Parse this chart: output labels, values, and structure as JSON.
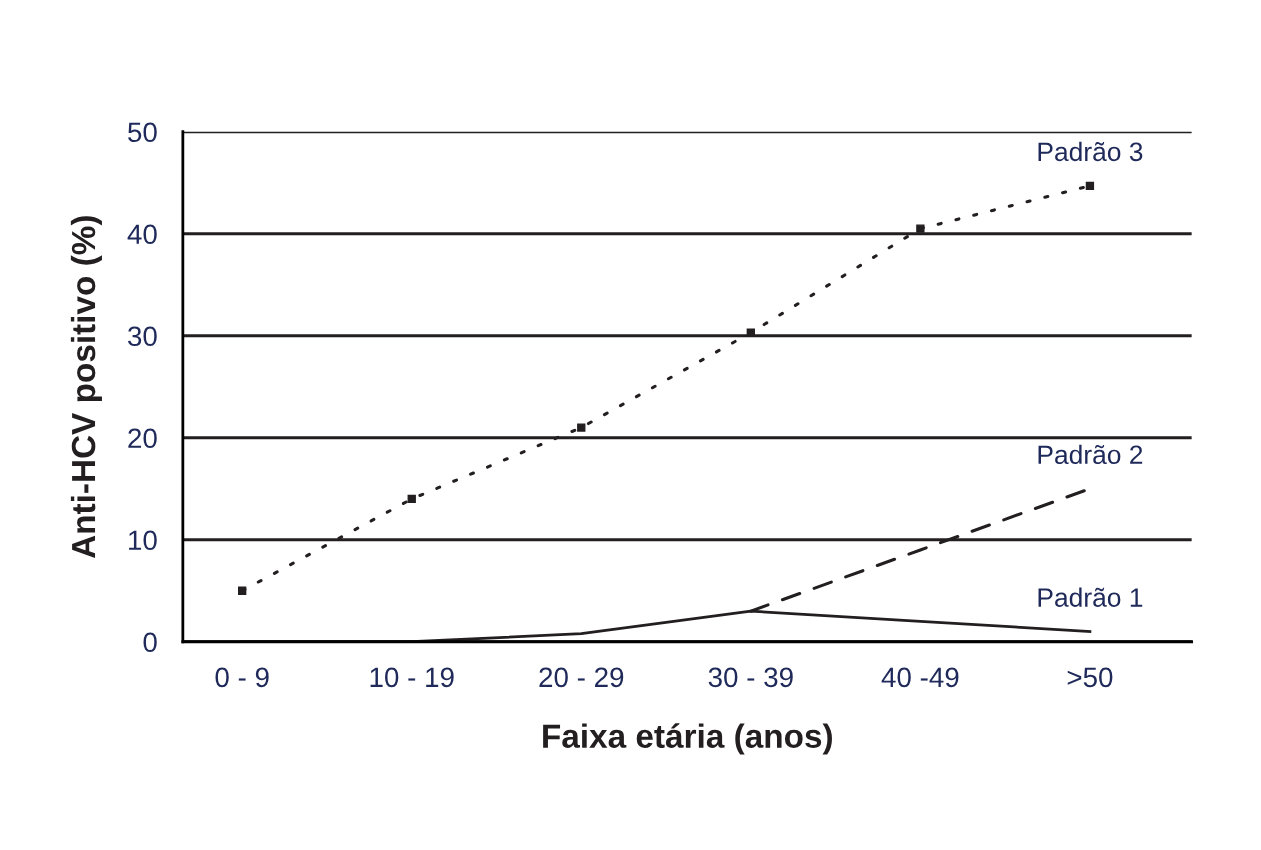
{
  "chart_data": {
    "type": "line",
    "xlabel": "Faixa etária (anos)",
    "ylabel": "Anti-HCV positivo (%)",
    "categories": [
      "0 - 9",
      "10 - 19",
      "20 - 29",
      "30 - 39",
      "40 -49",
      ">50"
    ],
    "series": [
      {
        "name": "Padrão 1",
        "color": "#231f20",
        "values": [
          0,
          0,
          0.8,
          3,
          2,
          1
        ],
        "line_style": "solid",
        "marker": "none"
      },
      {
        "name": "Padrão 2",
        "color": "#231f20",
        "values": [
          null,
          null,
          null,
          3,
          9,
          15
        ],
        "line_style": "dashed",
        "marker": "none"
      },
      {
        "name": "Padrão 3",
        "color": "#231f20",
        "values": [
          5,
          14,
          21,
          30.3,
          40.5,
          44.7
        ],
        "line_style": "dotted",
        "marker": "square"
      }
    ],
    "ylim": [
      0,
      50
    ],
    "yticks": [
      0,
      10,
      20,
      30,
      40,
      50
    ],
    "grid": "y",
    "legend": false
  }
}
